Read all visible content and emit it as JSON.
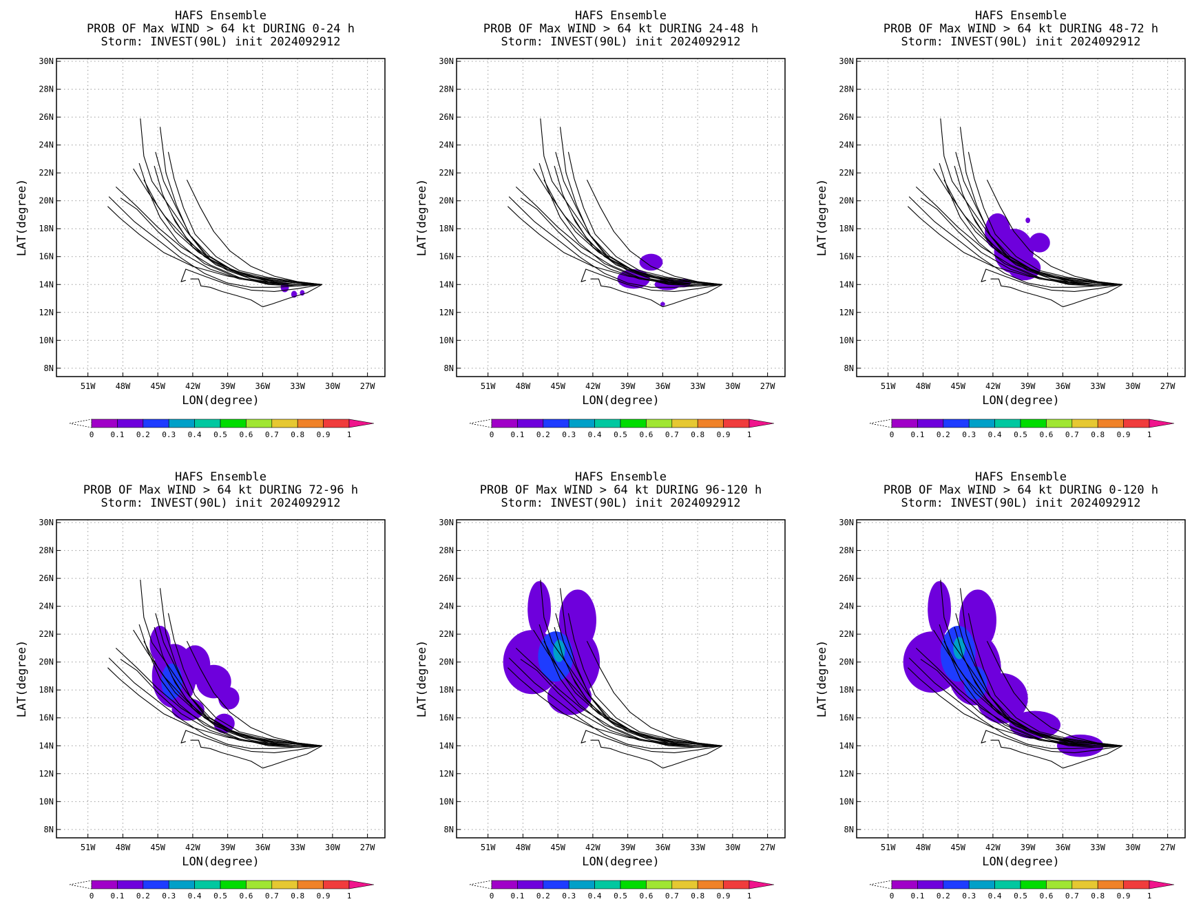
{
  "chart_data": [
    {
      "type": "heatmap",
      "title_lines": [
        "HAFS Ensemble",
        "PROB OF Max WIND > 64 kt DURING  0-24 h",
        "Storm: INVEST(90L) init 2024092912"
      ],
      "xlabel": "LON(degree)",
      "ylabel": "LAT(degree)",
      "x_ticks": [
        "51W",
        "48W",
        "45W",
        "42W",
        "39W",
        "36W",
        "33W",
        "30W",
        "27W"
      ],
      "y_ticks": [
        "8N",
        "10N",
        "12N",
        "14N",
        "16N",
        "18N",
        "20N",
        "22N",
        "24N",
        "26N",
        "28N",
        "30N"
      ],
      "xlim": [
        -53.7,
        -25.5
      ],
      "ylim": [
        7.4,
        30.2
      ],
      "grid": true,
      "colorbar_labels": [
        "0",
        "0.1",
        "0.2",
        "0.3",
        "0.4",
        "0.5",
        "0.6",
        "0.7",
        "0.8",
        "0.9",
        "1"
      ],
      "prob_blobs": [
        {
          "lon": -34.1,
          "lat": 13.8,
          "rx": 0.35,
          "ry": 0.35,
          "p": 0.1
        },
        {
          "lon": -33.3,
          "lat": 13.3,
          "rx": 0.25,
          "ry": 0.25,
          "p": 0.1
        },
        {
          "lon": -32.6,
          "lat": 13.4,
          "rx": 0.2,
          "ry": 0.2,
          "p": 0.1
        }
      ]
    },
    {
      "type": "heatmap",
      "title_lines": [
        "HAFS Ensemble",
        "PROB OF Max WIND > 64 kt DURING 24-48 h",
        "Storm: INVEST(90L) init 2024092912"
      ],
      "xlabel": "LON(degree)",
      "ylabel": "LAT(degree)",
      "x_ticks": [
        "51W",
        "48W",
        "45W",
        "42W",
        "39W",
        "36W",
        "33W",
        "30W",
        "27W"
      ],
      "y_ticks": [
        "8N",
        "10N",
        "12N",
        "14N",
        "16N",
        "18N",
        "20N",
        "22N",
        "24N",
        "26N",
        "28N",
        "30N"
      ],
      "xlim": [
        -53.7,
        -25.5
      ],
      "ylim": [
        7.4,
        30.2
      ],
      "grid": true,
      "colorbar_labels": [
        "0",
        "0.1",
        "0.2",
        "0.3",
        "0.4",
        "0.5",
        "0.6",
        "0.7",
        "0.8",
        "0.9",
        "1"
      ],
      "prob_blobs": [
        {
          "lon": -38.5,
          "lat": 14.4,
          "rx": 1.4,
          "ry": 0.7,
          "p": 0.1
        },
        {
          "lon": -37.0,
          "lat": 15.6,
          "rx": 1.0,
          "ry": 0.6,
          "p": 0.1
        },
        {
          "lon": -35.6,
          "lat": 14.0,
          "rx": 1.1,
          "ry": 0.4,
          "p": 0.1
        },
        {
          "lon": -34.2,
          "lat": 14.1,
          "rx": 0.6,
          "ry": 0.3,
          "p": 0.1
        },
        {
          "lon": -36.0,
          "lat": 12.6,
          "rx": 0.2,
          "ry": 0.15,
          "p": 0.1
        }
      ]
    },
    {
      "type": "heatmap",
      "title_lines": [
        "HAFS Ensemble",
        "PROB OF Max WIND > 64 kt DURING 48-72 h",
        "Storm: INVEST(90L) init 2024092912"
      ],
      "xlabel": "LON(degree)",
      "ylabel": "LAT(degree)",
      "x_ticks": [
        "51W",
        "48W",
        "45W",
        "42W",
        "39W",
        "36W",
        "33W",
        "30W",
        "27W"
      ],
      "y_ticks": [
        "8N",
        "10N",
        "12N",
        "14N",
        "16N",
        "18N",
        "20N",
        "22N",
        "24N",
        "26N",
        "28N",
        "30N"
      ],
      "xlim": [
        -53.7,
        -25.5
      ],
      "ylim": [
        7.4,
        30.2
      ],
      "grid": true,
      "colorbar_labels": [
        "0",
        "0.1",
        "0.2",
        "0.3",
        "0.4",
        "0.5",
        "0.6",
        "0.7",
        "0.8",
        "0.9",
        "1"
      ],
      "prob_blobs": [
        {
          "lon": -41.6,
          "lat": 17.8,
          "rx": 1.1,
          "ry": 1.3,
          "p": 0.1
        },
        {
          "lon": -40.2,
          "lat": 16.4,
          "rx": 1.7,
          "ry": 1.6,
          "p": 0.1
        },
        {
          "lon": -39.3,
          "lat": 15.2,
          "rx": 1.4,
          "ry": 0.9,
          "p": 0.1
        },
        {
          "lon": -38.0,
          "lat": 17.0,
          "rx": 0.9,
          "ry": 0.7,
          "p": 0.1
        },
        {
          "lon": -40.2,
          "lat": 16.2,
          "rx": 0.8,
          "ry": 0.8,
          "p": 0.15
        },
        {
          "lon": -39.0,
          "lat": 18.6,
          "rx": 0.2,
          "ry": 0.2,
          "p": 0.1
        }
      ]
    },
    {
      "type": "heatmap",
      "title_lines": [
        "HAFS Ensemble",
        "PROB OF Max WIND > 64 kt DURING 72-96 h",
        "Storm: INVEST(90L) init 2024092912"
      ],
      "xlabel": "LON(degree)",
      "ylabel": "LAT(degree)",
      "x_ticks": [
        "51W",
        "48W",
        "45W",
        "42W",
        "39W",
        "36W",
        "33W",
        "30W",
        "27W"
      ],
      "y_ticks": [
        "8N",
        "10N",
        "12N",
        "14N",
        "16N",
        "18N",
        "20N",
        "22N",
        "24N",
        "26N",
        "28N",
        "30N"
      ],
      "xlim": [
        -53.7,
        -25.5
      ],
      "ylim": [
        7.4,
        30.2
      ],
      "grid": true,
      "colorbar_labels": [
        "0",
        "0.1",
        "0.2",
        "0.3",
        "0.4",
        "0.5",
        "0.6",
        "0.7",
        "0.8",
        "0.9",
        "1"
      ],
      "prob_blobs": [
        {
          "lon": -44.8,
          "lat": 21.3,
          "rx": 0.9,
          "ry": 1.3,
          "p": 0.1
        },
        {
          "lon": -43.6,
          "lat": 19.0,
          "rx": 1.9,
          "ry": 2.3,
          "p": 0.1
        },
        {
          "lon": -41.8,
          "lat": 19.8,
          "rx": 1.3,
          "ry": 1.4,
          "p": 0.1
        },
        {
          "lon": -40.2,
          "lat": 18.6,
          "rx": 1.5,
          "ry": 1.2,
          "p": 0.1
        },
        {
          "lon": -38.9,
          "lat": 17.4,
          "rx": 0.9,
          "ry": 0.8,
          "p": 0.1
        },
        {
          "lon": -42.4,
          "lat": 16.6,
          "rx": 1.4,
          "ry": 0.8,
          "p": 0.1
        },
        {
          "lon": -39.3,
          "lat": 15.6,
          "rx": 0.9,
          "ry": 0.7,
          "p": 0.1
        },
        {
          "lon": -43.8,
          "lat": 18.6,
          "rx": 0.9,
          "ry": 1.3,
          "p": 0.2
        }
      ]
    },
    {
      "type": "heatmap",
      "title_lines": [
        "HAFS Ensemble",
        "PROB OF Max WIND > 64 kt DURING 96-120 h",
        "Storm: INVEST(90L) init 2024092912"
      ],
      "xlabel": "LON(degree)",
      "ylabel": "LAT(degree)",
      "x_ticks": [
        "51W",
        "48W",
        "45W",
        "42W",
        "39W",
        "36W",
        "33W",
        "30W",
        "27W"
      ],
      "y_ticks": [
        "8N",
        "10N",
        "12N",
        "14N",
        "16N",
        "18N",
        "20N",
        "22N",
        "24N",
        "26N",
        "28N",
        "30N"
      ],
      "xlim": [
        -53.7,
        -25.5
      ],
      "ylim": [
        7.4,
        30.2
      ],
      "grid": true,
      "colorbar_labels": [
        "0",
        "0.1",
        "0.2",
        "0.3",
        "0.4",
        "0.5",
        "0.6",
        "0.7",
        "0.8",
        "0.9",
        "1"
      ],
      "prob_blobs": [
        {
          "lon": -46.6,
          "lat": 23.8,
          "rx": 1.0,
          "ry": 2.0,
          "p": 0.1
        },
        {
          "lon": -43.3,
          "lat": 23.0,
          "rx": 1.6,
          "ry": 2.2,
          "p": 0.1
        },
        {
          "lon": -47.2,
          "lat": 20.0,
          "rx": 2.5,
          "ry": 2.3,
          "p": 0.1
        },
        {
          "lon": -43.6,
          "lat": 20.0,
          "rx": 2.2,
          "ry": 2.4,
          "p": 0.1
        },
        {
          "lon": -44.0,
          "lat": 17.5,
          "rx": 1.9,
          "ry": 1.3,
          "p": 0.1
        },
        {
          "lon": -45.2,
          "lat": 20.4,
          "rx": 1.5,
          "ry": 1.8,
          "p": 0.2
        },
        {
          "lon": -44.9,
          "lat": 20.8,
          "rx": 0.5,
          "ry": 0.8,
          "p": 0.3
        }
      ]
    },
    {
      "type": "heatmap",
      "title_lines": [
        "HAFS Ensemble",
        "PROB OF Max WIND > 64 kt DURING 0-120 h",
        "Storm: INVEST(90L) init 2024092912"
      ],
      "xlabel": "LON(degree)",
      "ylabel": "LAT(degree)",
      "x_ticks": [
        "51W",
        "48W",
        "45W",
        "42W",
        "39W",
        "36W",
        "33W",
        "30W",
        "27W"
      ],
      "y_ticks": [
        "8N",
        "10N",
        "12N",
        "14N",
        "16N",
        "18N",
        "20N",
        "22N",
        "24N",
        "26N",
        "28N",
        "30N"
      ],
      "xlim": [
        -53.7,
        -25.5
      ],
      "ylim": [
        7.4,
        30.2
      ],
      "grid": true,
      "colorbar_labels": [
        "0",
        "0.1",
        "0.2",
        "0.3",
        "0.4",
        "0.5",
        "0.6",
        "0.7",
        "0.8",
        "0.9",
        "1"
      ],
      "prob_blobs": [
        {
          "lon": -46.6,
          "lat": 23.8,
          "rx": 1.0,
          "ry": 2.0,
          "p": 0.1
        },
        {
          "lon": -43.3,
          "lat": 23.0,
          "rx": 1.6,
          "ry": 2.2,
          "p": 0.1
        },
        {
          "lon": -47.2,
          "lat": 20.0,
          "rx": 2.5,
          "ry": 2.2,
          "p": 0.1
        },
        {
          "lon": -43.6,
          "lat": 19.5,
          "rx": 2.3,
          "ry": 2.6,
          "p": 0.1
        },
        {
          "lon": -41.2,
          "lat": 17.4,
          "rx": 2.2,
          "ry": 1.8,
          "p": 0.1
        },
        {
          "lon": -38.4,
          "lat": 15.5,
          "rx": 2.2,
          "ry": 1.0,
          "p": 0.1
        },
        {
          "lon": -34.5,
          "lat": 14.0,
          "rx": 2.0,
          "ry": 0.8,
          "p": 0.1
        },
        {
          "lon": -45.0,
          "lat": 20.6,
          "rx": 1.5,
          "ry": 2.0,
          "p": 0.2
        },
        {
          "lon": -43.5,
          "lat": 18.5,
          "rx": 1.0,
          "ry": 1.2,
          "p": 0.2
        },
        {
          "lon": -44.9,
          "lat": 21.0,
          "rx": 0.5,
          "ry": 0.8,
          "p": 0.3
        }
      ]
    }
  ],
  "colorbar": {
    "colors": [
      "#a000c8",
      "#6e00dc",
      "#1e3cff",
      "#00a0c8",
      "#00c8a0",
      "#00dc00",
      "#a0e632",
      "#e6c832",
      "#f08228",
      "#f03c3c"
    ],
    "overflow_color": "#f0148c"
  },
  "tracks": [
    [
      [
        -30.9,
        14.0
      ],
      [
        -33,
        14.1
      ],
      [
        -35,
        14.3
      ],
      [
        -37,
        14.6
      ],
      [
        -39,
        15.2
      ],
      [
        -41,
        16.2
      ],
      [
        -42.5,
        17.8
      ],
      [
        -44,
        19.6
      ],
      [
        -45.5,
        21.4
      ],
      [
        -46.2,
        23.2
      ],
      [
        -46.5,
        25.9
      ]
    ],
    [
      [
        -30.9,
        14.0
      ],
      [
        -33,
        14.0
      ],
      [
        -35.5,
        14.2
      ],
      [
        -38,
        14.8
      ],
      [
        -40.5,
        15.8
      ],
      [
        -42.3,
        17.6
      ],
      [
        -43.4,
        19.7
      ],
      [
        -44.3,
        22.0
      ],
      [
        -44.8,
        25.3
      ]
    ],
    [
      [
        -30.9,
        14.0
      ],
      [
        -33.5,
        14.2
      ],
      [
        -36,
        14.5
      ],
      [
        -38.5,
        15.0
      ],
      [
        -40.5,
        16.0
      ],
      [
        -42.2,
        17.5
      ],
      [
        -43.4,
        19.5
      ],
      [
        -44.5,
        21.4
      ],
      [
        -45.2,
        23.5
      ]
    ],
    [
      [
        -30.9,
        14.0
      ],
      [
        -33,
        14.1
      ],
      [
        -36,
        14.4
      ],
      [
        -39,
        15.1
      ],
      [
        -41.5,
        16.3
      ],
      [
        -43.5,
        17.8
      ],
      [
        -45.0,
        19.6
      ],
      [
        -46.2,
        21.5
      ]
    ],
    [
      [
        -30.9,
        14.0
      ],
      [
        -33,
        13.9
      ],
      [
        -35.5,
        14.0
      ],
      [
        -38,
        14.5
      ],
      [
        -40.5,
        15.4
      ],
      [
        -43,
        16.7
      ],
      [
        -45,
        18.1
      ],
      [
        -46.8,
        19.6
      ],
      [
        -48.6,
        21.0
      ]
    ],
    [
      [
        -30.9,
        14.0
      ],
      [
        -33,
        14.1
      ],
      [
        -35.5,
        14.3
      ],
      [
        -38,
        14.8
      ],
      [
        -40.5,
        15.8
      ],
      [
        -42.5,
        17.2
      ],
      [
        -44.4,
        18.9
      ],
      [
        -45.9,
        20.7
      ],
      [
        -47.1,
        22.3
      ]
    ],
    [
      [
        -30.9,
        14.0
      ],
      [
        -33,
        14.0
      ],
      [
        -36,
        14.2
      ],
      [
        -39,
        14.6
      ],
      [
        -42,
        15.3
      ],
      [
        -44.5,
        16.3
      ],
      [
        -46.6,
        17.6
      ],
      [
        -48.3,
        18.8
      ],
      [
        -49.3,
        19.6
      ]
    ],
    [
      [
        -30.9,
        14.0
      ],
      [
        -33,
        14.2
      ],
      [
        -35.5,
        14.5
      ],
      [
        -38,
        15.0
      ],
      [
        -40,
        16.0
      ],
      [
        -41.8,
        17.6
      ],
      [
        -42.8,
        19.5
      ],
      [
        -43.6,
        21.6
      ],
      [
        -44.1,
        23.5
      ]
    ],
    [
      [
        -30.9,
        14.0
      ],
      [
        -33,
        13.9
      ],
      [
        -36,
        14.1
      ],
      [
        -38.5,
        14.6
      ],
      [
        -41,
        15.5
      ],
      [
        -43.2,
        17.0
      ],
      [
        -44.8,
        18.8
      ],
      [
        -45.9,
        20.9
      ],
      [
        -46.6,
        22.7
      ]
    ],
    [
      [
        -30.9,
        14.0
      ],
      [
        -33,
        14.0
      ],
      [
        -35,
        14.2
      ],
      [
        -37.5,
        14.6
      ],
      [
        -40,
        15.4
      ],
      [
        -42,
        16.7
      ],
      [
        -43.5,
        18.5
      ],
      [
        -44.6,
        20.5
      ],
      [
        -45.3,
        22.5
      ]
    ],
    [
      [
        -30.9,
        14.0
      ],
      [
        -33,
        14.0
      ],
      [
        -35,
        14.1
      ],
      [
        -37,
        14.4
      ],
      [
        -39,
        15.0
      ],
      [
        -41,
        16.0
      ],
      [
        -42.6,
        17.4
      ],
      [
        -43.8,
        19.0
      ]
    ],
    [
      [
        -30.9,
        14.0
      ],
      [
        -33,
        13.9
      ],
      [
        -35,
        13.8
      ],
      [
        -37,
        13.8
      ],
      [
        -39,
        14.1
      ],
      [
        -41,
        14.8
      ],
      [
        -43,
        15.9
      ],
      [
        -45,
        17.2
      ],
      [
        -47,
        18.5
      ],
      [
        -49.2,
        20.3
      ]
    ],
    [
      [
        -30.9,
        14.0
      ],
      [
        -32.2,
        13.4
      ],
      [
        -33.8,
        13.0
      ],
      [
        -35.2,
        12.6
      ],
      [
        -36.0,
        12.4
      ],
      [
        -37.0,
        12.9
      ],
      [
        -38.2,
        13.2
      ],
      [
        -39.5,
        13.5
      ],
      [
        -40.5,
        13.8
      ],
      [
        -41.3,
        13.9
      ],
      [
        -41.5,
        14.4
      ],
      [
        -42.2,
        14.4
      ]
    ],
    [
      [
        -30.9,
        14.0
      ],
      [
        -33,
        13.7
      ],
      [
        -35,
        13.5
      ],
      [
        -37,
        13.6
      ],
      [
        -39,
        14.0
      ],
      [
        -41,
        14.6
      ],
      [
        -42.6,
        15.1
      ],
      [
        -43.0,
        14.2
      ],
      [
        -42.6,
        14.3
      ]
    ],
    [
      [
        -30.9,
        14.0
      ],
      [
        -33,
        14.2
      ],
      [
        -35,
        14.6
      ],
      [
        -37,
        15.3
      ],
      [
        -38.8,
        16.4
      ],
      [
        -40.2,
        17.8
      ],
      [
        -41.4,
        19.6
      ],
      [
        -42.5,
        21.5
      ]
    ],
    [
      [
        -30.9,
        14.0
      ],
      [
        -33,
        14.0
      ],
      [
        -35.5,
        14.1
      ],
      [
        -38,
        14.4
      ],
      [
        -40.5,
        15.1
      ],
      [
        -43,
        16.3
      ],
      [
        -45,
        17.8
      ],
      [
        -46.8,
        19.4
      ],
      [
        -48.2,
        20.2
      ]
    ]
  ]
}
